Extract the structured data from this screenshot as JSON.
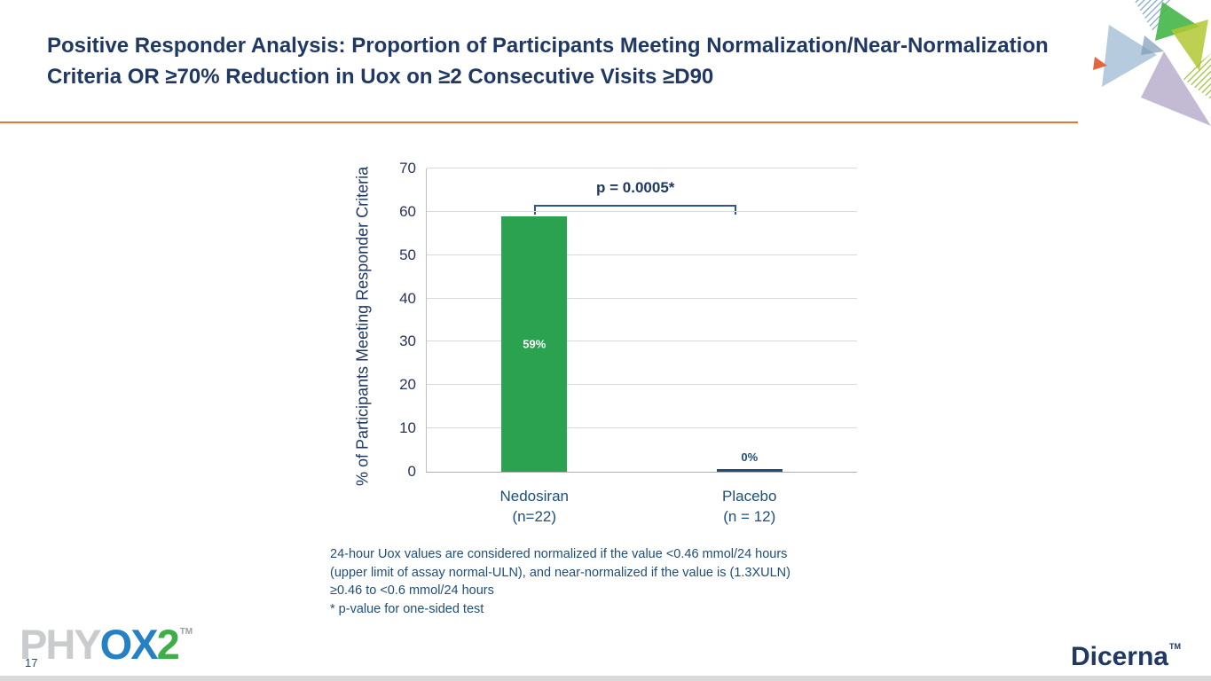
{
  "slide": {
    "title": "Positive Responder Analysis: Proportion of Participants Meeting Normalization/Near-Normalization Criteria OR ≥70% Reduction in Uox on ≥2 Consecutive Visits ≥D90",
    "page_number": "17",
    "footnotes": {
      "line1": "24-hour Uox values are considered normalized if the value <0.46 mmol/24 hours",
      "line2": "(upper limit of assay normal-ULN), and near-normalized if the value is (1.3XULN)",
      "line3": "≥0.46 to <0.6 mmol/24 hours",
      "line4": "* p-value for one-sided test"
    },
    "logos": {
      "phyox_phy": "PHY",
      "phyox_ox": "OX",
      "phyox_2": "2",
      "phyox_tm": "TM",
      "dicerna": "Dicerna",
      "dicerna_tm": "TM"
    },
    "colors": {
      "title": "#1F3864",
      "divider": "#E8772E",
      "footnote": "#1F4E79",
      "bracket": "#2F5496"
    }
  },
  "chart_data": {
    "type": "bar",
    "categories": [
      "Nedosiran\n(n=22)",
      "Placebo\n(n = 12)"
    ],
    "values": [
      59,
      0
    ],
    "bar_labels": [
      "59%",
      "0%"
    ],
    "bar_colors": [
      "#2BA24F",
      "#1F4E79"
    ],
    "title": "",
    "xlabel": "",
    "ylabel": "% of Participants Meeting Responder Criteria",
    "ylim": [
      0,
      70
    ],
    "yticks": [
      0,
      10,
      20,
      30,
      40,
      50,
      60,
      70
    ],
    "annotation": "p = 0.0005*",
    "grid": true,
    "legend": "none"
  }
}
